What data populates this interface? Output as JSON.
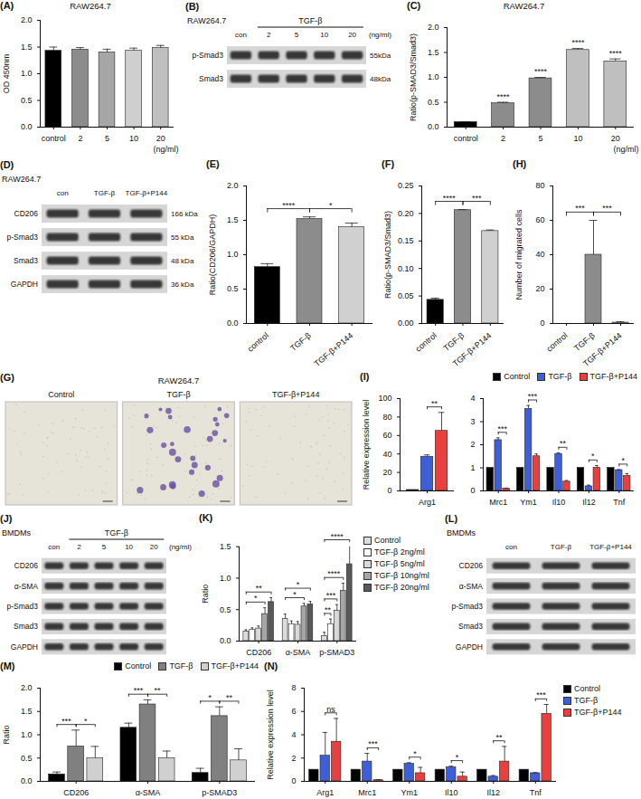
{
  "chart_data": [
    {
      "panel_label": "(A)",
      "type": "bar",
      "title": "RAW264.7",
      "categories": [
        "control",
        "2",
        "5",
        "10",
        "20"
      ],
      "xlabel": "(ng/ml)",
      "values": [
        1.43,
        1.45,
        1.4,
        1.43,
        1.48
      ],
      "errors": [
        0.07,
        0.04,
        0.06,
        0.05,
        0.05
      ],
      "colors": [
        "#000000",
        "#8c8c8c",
        "#a6a6a6",
        "#cfcfcf",
        "#bfbfbf"
      ],
      "ylabel": "OD 450nm",
      "ylim": [
        0,
        2
      ],
      "yticks": [
        {
          "value": 0,
          "label": "0.0"
        },
        0.5,
        {
          "value": 1,
          "label": "1.0"
        },
        1.5,
        {
          "value": 2,
          "label": "2.0"
        }
      ]
    },
    {
      "panel_label": "(C)",
      "type": "bar",
      "title": "RAW264.7",
      "categories": [
        "control",
        "2",
        "5",
        "10",
        "20"
      ],
      "xlabel": "(ng/ml)",
      "values": [
        0.1,
        0.48,
        0.98,
        1.55,
        1.32
      ],
      "errors": [
        0.01,
        0.02,
        0.02,
        0.03,
        0.05
      ],
      "colors": [
        "#000000",
        "#8c8c8c",
        "#8c8c8c",
        "#bfbfbf",
        "#bfbfbf"
      ],
      "ylabel": "Ratio(p-SMAD3/Smad3)",
      "ylim": [
        0,
        2
      ],
      "yticks": [
        {
          "value": 0,
          "label": "0.0"
        },
        0.5,
        {
          "value": 1,
          "label": "1.0"
        },
        1.5,
        {
          "value": 2,
          "label": "2.0"
        }
      ],
      "annotations": [
        {
          "at": "2",
          "label": "****"
        },
        {
          "at": "5",
          "label": "****"
        },
        {
          "at": "10",
          "label": "****"
        },
        {
          "at": "20",
          "label": "****"
        }
      ]
    },
    {
      "panel_label": "(E)",
      "type": "bar",
      "categories": [
        "control",
        "TGF-β",
        "TGF-β+P144"
      ],
      "values": [
        0.82,
        1.52,
        1.4
      ],
      "errors": [
        0.05,
        0.03,
        0.06
      ],
      "colors": [
        "#000000",
        "#8c8c8c",
        "#d0d0d0"
      ],
      "ylabel": "Ratio(CD206/GAPDH)",
      "ylim": [
        0,
        2
      ],
      "yticks": [
        {
          "value": 0,
          "label": "0.0"
        },
        0.5,
        {
          "value": 1,
          "label": "1.0"
        },
        1.5,
        {
          "value": 2,
          "label": "2.0"
        }
      ],
      "annotations": [
        {
          "from": "control",
          "to": "TGF-β",
          "label": "****"
        },
        {
          "from": "TGF-β",
          "to": "TGF-β+P144",
          "label": "*"
        }
      ]
    },
    {
      "panel_label": "(F)",
      "type": "bar",
      "categories": [
        "control",
        "TGF-β",
        "TGF-β+P144"
      ],
      "values": [
        0.043,
        0.206,
        0.168
      ],
      "errors": [
        0.003,
        0.001,
        0.002
      ],
      "colors": [
        "#000000",
        "#8c8c8c",
        "#d0d0d0"
      ],
      "ylabel": "Ratio(p-SMAD3/Smad3)",
      "ylim": [
        0,
        0.25
      ],
      "yticks": [
        {
          "value": 0,
          "label": "0.00"
        },
        0.05,
        {
          "value": 0.1,
          "label": "0.10"
        },
        0.15,
        {
          "value": 0.2,
          "label": "0.20"
        },
        0.25
      ],
      "annotations": [
        {
          "from": "control",
          "to": "TGF-β",
          "label": "****"
        },
        {
          "from": "TGF-β",
          "to": "TGF-β+P144",
          "label": "***"
        }
      ]
    },
    {
      "panel_label": "(H)",
      "type": "bar",
      "categories": [
        "control",
        "TGF-β",
        "TGF-β+P144"
      ],
      "values": [
        0,
        40,
        0.5
      ],
      "errors": [
        0,
        20,
        0.5
      ],
      "colors": [
        "#000000",
        "#8c8c8c",
        "#d0d0d0"
      ],
      "ylabel": "Number of migrated cells",
      "ylim": [
        0,
        80
      ],
      "yticks": [
        0,
        20,
        40,
        60,
        80
      ],
      "annotations": [
        {
          "from": "control",
          "to": "TGF-β",
          "label": "***"
        },
        {
          "from": "TGF-β",
          "to": "TGF-β+P144",
          "label": "***"
        }
      ]
    },
    {
      "panel_label": "(I)",
      "type": "bar",
      "categories": [
        "Arg1"
      ],
      "series": [
        {
          "name": "Control",
          "color": "#000000",
          "values": [
            1
          ],
          "errors": [
            0
          ]
        },
        {
          "name": "TGF-β",
          "color": "#3f5fd8",
          "values": [
            37
          ],
          "errors": [
            2
          ]
        },
        {
          "name": "TGF-β+P144",
          "color": "#e8403f",
          "values": [
            65
          ],
          "errors": [
            20
          ]
        }
      ],
      "ylabel": "Relative expression level",
      "ylim": [
        0,
        100
      ],
      "yticks": [
        0,
        20,
        40,
        60,
        80,
        100
      ],
      "annotations": [
        {
          "category": "Arg1",
          "from": "TGF-β",
          "to": "TGF-β+P144",
          "label": "**"
        }
      ]
    },
    {
      "type": "bar",
      "legend": "top",
      "categories": [
        "Mrc1",
        "Ym1",
        "Il10",
        "Il12",
        "Tnf"
      ],
      "series": [
        {
          "name": "Control",
          "color": "#000000",
          "values": [
            1,
            1,
            1,
            1,
            1
          ],
          "errors": [
            0,
            0,
            0,
            0,
            0
          ]
        },
        {
          "name": "TGF-β",
          "color": "#3f5fd8",
          "values": [
            2.2,
            3.55,
            1.6,
            0.2,
            0.9
          ],
          "errors": [
            0.1,
            0.15,
            0.05,
            0.05,
            0.02
          ]
        },
        {
          "name": "TGF-β+P144",
          "color": "#e8403f",
          "values": [
            0.1,
            1.5,
            0.4,
            1.0,
            0.65
          ],
          "errors": [
            0.02,
            0.1,
            0.05,
            0.1,
            0.1
          ]
        }
      ],
      "ylim": [
        0,
        4
      ],
      "yticks": [
        0,
        1,
        2,
        3,
        4
      ],
      "annotations": [
        {
          "category": "Mrc1",
          "from": "TGF-β",
          "to": "TGF-β+P144",
          "label": "***"
        },
        {
          "category": "Ym1",
          "from": "TGF-β",
          "to": "TGF-β+P144",
          "label": "***"
        },
        {
          "category": "Il10",
          "from": "TGF-β",
          "to": "TGF-β+P144",
          "label": "**"
        },
        {
          "category": "Il12",
          "from": "TGF-β",
          "to": "TGF-β+P144",
          "label": "*"
        },
        {
          "category": "Tnf",
          "from": "TGF-β",
          "to": "TGF-β+P144",
          "label": "*"
        }
      ]
    },
    {
      "panel_label": "(K)",
      "type": "bar",
      "legend": "right",
      "categories": [
        "CD206",
        "α-SMA",
        "p-SMAD3"
      ],
      "series": [
        {
          "name": "Control",
          "color": "#dcdcdc",
          "values": [
            0.15,
            0.35,
            0.08
          ],
          "errors": [
            0.03,
            0.08,
            0.06
          ]
        },
        {
          "name": "TGF-β 2ng/ml",
          "color": "#ffffff",
          "values": [
            0.18,
            0.27,
            0.27
          ],
          "errors": [
            0.03,
            0.05,
            0.08
          ]
        },
        {
          "name": "TGF-β 5ng/ml",
          "color": "#d9d9d9",
          "values": [
            0.2,
            0.26,
            0.48
          ],
          "errors": [
            0.04,
            0.05,
            0.1
          ]
        },
        {
          "name": "TGF-β 10ng/ml",
          "color": "#a6a6a6",
          "values": [
            0.43,
            0.55,
            0.8
          ],
          "errors": [
            0.1,
            0.05,
            0.12
          ]
        },
        {
          "name": "TGF-β 20ng/ml",
          "color": "#595959",
          "values": [
            0.62,
            0.58,
            1.22
          ],
          "errors": [
            0.07,
            0.05,
            0.3
          ]
        }
      ],
      "ylabel": "Ratio",
      "ylim": [
        0,
        1.5
      ],
      "yticks": [
        {
          "value": 0,
          "label": "0.0"
        },
        0.5,
        {
          "value": 1,
          "label": "1.0"
        },
        1.5
      ],
      "annotations": [
        {
          "category": "CD206",
          "from": "Control",
          "to": "TGF-β 10ng/ml",
          "label": "*"
        },
        {
          "category": "CD206",
          "from": "Control",
          "to": "TGF-β 20ng/ml",
          "label": "**"
        },
        {
          "category": "α-SMA",
          "from": "Control",
          "to": "TGF-β 10ng/ml",
          "label": "*"
        },
        {
          "category": "α-SMA",
          "from": "Control",
          "to": "TGF-β 20ng/ml",
          "label": "*"
        },
        {
          "category": "p-SMAD3",
          "from": "Control",
          "to": "TGF-β 2ng/ml",
          "label": "**"
        },
        {
          "category": "p-SMAD3",
          "from": "Control",
          "to": "TGF-β 5ng/ml",
          "label": "***"
        },
        {
          "category": "p-SMAD3",
          "from": "Control",
          "to": "TGF-β 10ng/ml",
          "label": "****"
        },
        {
          "category": "p-SMAD3",
          "from": "Control",
          "to": "TGF-β 20ng/ml",
          "label": "****"
        }
      ]
    },
    {
      "panel_label": "(M)",
      "type": "bar",
      "legend": "top",
      "categories": [
        "CD206",
        "α-SMA",
        "p-SMAD3"
      ],
      "series": [
        {
          "name": "Control",
          "color": "#000000",
          "values": [
            0.15,
            1.15,
            0.18
          ],
          "errors": [
            0.05,
            0.1,
            0.1
          ]
        },
        {
          "name": "TGF-β",
          "color": "#808080",
          "values": [
            0.75,
            1.65,
            1.4
          ],
          "errors": [
            0.35,
            0.1,
            0.2
          ]
        },
        {
          "name": "TGF-β+P144",
          "color": "#d0d0d0",
          "values": [
            0.5,
            0.5,
            0.45
          ],
          "errors": [
            0.25,
            0.15,
            0.25
          ]
        }
      ],
      "ylabel": "Ratio",
      "ylim": [
        0,
        2
      ],
      "yticks": [
        {
          "value": 0,
          "label": "0.0"
        },
        0.5,
        {
          "value": 1,
          "label": "1.0"
        },
        1.5,
        {
          "value": 2,
          "label": "2.0"
        }
      ],
      "annotations": [
        {
          "category": "CD206",
          "from": "Control",
          "to": "TGF-β",
          "label": "***"
        },
        {
          "category": "CD206",
          "from": "TGF-β",
          "to": "TGF-β+P144",
          "label": "*"
        },
        {
          "category": "α-SMA",
          "from": "Control",
          "to": "TGF-β",
          "label": "***"
        },
        {
          "category": "α-SMA",
          "from": "TGF-β",
          "to": "TGF-β+P144",
          "label": "**"
        },
        {
          "category": "p-SMAD3",
          "from": "Control",
          "to": "TGF-β",
          "label": "*"
        },
        {
          "category": "p-SMAD3",
          "from": "TGF-β",
          "to": "TGF-β+P144",
          "label": "**"
        }
      ]
    },
    {
      "panel_label": "(N)",
      "type": "bar",
      "legend": "right",
      "categories": [
        "Arg1",
        "Mrc1",
        "Ym1",
        "Il10",
        "Il12",
        "Tnf"
      ],
      "series": [
        {
          "name": "Control",
          "color": "#000000",
          "values": [
            1,
            1,
            1,
            1,
            1,
            1
          ],
          "errors": [
            0,
            0,
            0,
            0,
            0,
            0
          ]
        },
        {
          "name": "TGF-β",
          "color": "#3f5fd8",
          "values": [
            2.2,
            1.7,
            1.5,
            1.2,
            0.4,
            0.7
          ],
          "errors": [
            2.0,
            0.7,
            0.1,
            0.1,
            0.1,
            0.05
          ]
        },
        {
          "name": "TGF-β+P144",
          "color": "#e8403f",
          "values": [
            3.4,
            0.1,
            0.7,
            0.4,
            1.7,
            5.8
          ],
          "errors": [
            2.0,
            0.05,
            0.5,
            0.4,
            1.3,
            0.8
          ]
        }
      ],
      "ylabel": "Relative expression level",
      "ylim": [
        0,
        8
      ],
      "yticks": [
        0,
        2,
        4,
        6,
        8
      ],
      "annotations": [
        {
          "category": "Arg1",
          "from": "TGF-β",
          "to": "TGF-β+P144",
          "label": "ns"
        },
        {
          "category": "Mrc1",
          "from": "TGF-β",
          "to": "TGF-β+P144",
          "label": "***"
        },
        {
          "category": "Ym1",
          "from": "TGF-β",
          "to": "TGF-β+P144",
          "label": "*"
        },
        {
          "category": "Il10",
          "from": "TGF-β",
          "to": "TGF-β+P144",
          "label": "*"
        },
        {
          "category": "Il12",
          "from": "TGF-β",
          "to": "TGF-β+P144",
          "label": "**"
        },
        {
          "category": "Tnf",
          "from": "TGF-β",
          "to": "TGF-β+P144",
          "label": "***"
        }
      ]
    }
  ],
  "blots": [
    {
      "panel_label": "(B)",
      "cell_line": "RAW264.7",
      "group_label": "TGF-β",
      "group_lanes": [
        "2",
        "5",
        "10",
        "20"
      ],
      "lanes": [
        "con",
        "2",
        "5",
        "10",
        "20"
      ],
      "unit": "(ng/ml)",
      "rows": [
        {
          "name": "p-Smad3",
          "size": "55kDa"
        },
        {
          "name": "Smad3",
          "size": "48kDa"
        }
      ]
    },
    {
      "panel_label": "(D)",
      "cell_line": "RAW264.7",
      "lanes": [
        "con",
        "TGF-β",
        "TGF-β+P144"
      ],
      "rows": [
        {
          "name": "CD206",
          "size": "166 kDa"
        },
        {
          "name": "p-Smad3",
          "size": "55 kDa"
        },
        {
          "name": "Smad3",
          "size": "48 kDa"
        },
        {
          "name": "GAPDH",
          "size": "36 kDa"
        }
      ]
    },
    {
      "panel_label": "(J)",
      "cell_line": "BMDMs",
      "group_label": "TGF-β",
      "group_lanes": [
        "2",
        "5",
        "10",
        "20"
      ],
      "lanes": [
        "con",
        "2",
        "5",
        "10",
        "20"
      ],
      "unit": "(ng/ml)",
      "rows": [
        {
          "name": "CD206"
        },
        {
          "name": "α-SMA"
        },
        {
          "name": "p-Smad3"
        },
        {
          "name": "Smad3"
        },
        {
          "name": "GAPDH"
        }
      ]
    },
    {
      "panel_label": "(L)",
      "cell_line": "BMDMs",
      "lanes": [
        "con",
        "TGF-β",
        "TGF-β+P144"
      ],
      "rows": [
        {
          "name": "CD206"
        },
        {
          "name": "α-SMA"
        },
        {
          "name": "p-Smad3"
        },
        {
          "name": "Smad3"
        },
        {
          "name": "GAPDH"
        }
      ]
    }
  ],
  "micrographs": {
    "panel_label": "(G)",
    "title": "RAW264.7",
    "images": [
      "Control",
      "TGF-β",
      "TGF-β+P144"
    ]
  }
}
